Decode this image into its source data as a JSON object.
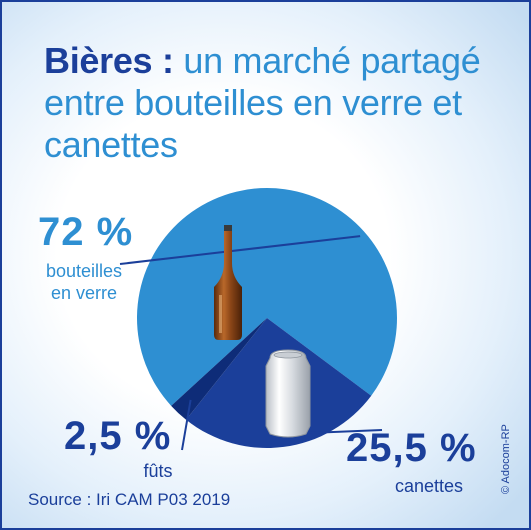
{
  "title": {
    "bold": "Bières :",
    "rest": " un marché partagé entre bouteilles en verre et canettes"
  },
  "source": "Source : Iri CAM P03 2019",
  "credit": "© Adocom-RP",
  "colors": {
    "bouteilles": "#2e8fd2",
    "canettes": "#1b3f9a",
    "futs": "#0e2c78",
    "title_bold": "#1b3f9a",
    "title_light": "#2e8fd2"
  },
  "icons": [
    "beer-bottle-icon",
    "beer-can-icon"
  ],
  "chart_data": {
    "type": "pie",
    "title": "Bières : un marché partagé entre bouteilles en verre et canettes",
    "slices": [
      {
        "label": "bouteilles en verre",
        "value": 72,
        "display": "72 %",
        "label_lines": [
          "bouteilles",
          "en verre"
        ]
      },
      {
        "label": "canettes",
        "value": 25.5,
        "display": "25,5 %",
        "label_lines": [
          "canettes"
        ]
      },
      {
        "label": "fûts",
        "value": 2.5,
        "display": "2,5 %",
        "label_lines": [
          "fûts"
        ]
      }
    ]
  }
}
